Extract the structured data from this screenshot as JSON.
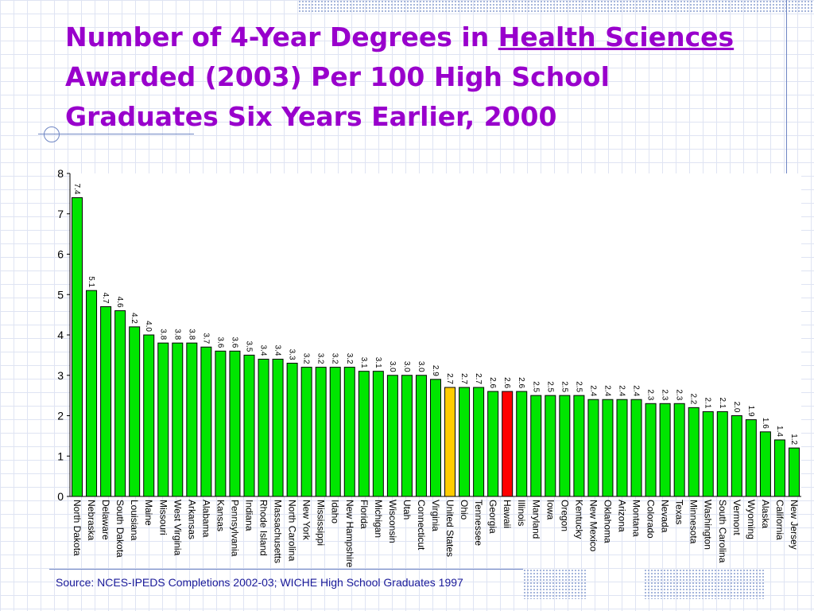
{
  "title": {
    "line1_prefix": "Number of 4-Year Degrees in ",
    "line1_underlined": "Health Sciences",
    "line2": "Awarded (2003) Per 100 High School",
    "line3": "Graduates Six Years Earlier, 2000"
  },
  "source": "Source:  NCES-IPEDS Completions 2002-03; WICHE High School Graduates 1997",
  "colors": {
    "bar_default": "#00e600",
    "bar_united_states": "#ffcc00",
    "bar_hawaii": "#ff0000",
    "title": "#9900cc"
  },
  "chart_data": {
    "type": "bar",
    "ylim": [
      0,
      8
    ],
    "yticks": [
      "0",
      "1",
      "2",
      "3",
      "4",
      "5",
      "6",
      "7",
      "8"
    ],
    "grid": false,
    "categories": [
      "North Dakota",
      "Nebraska",
      "Delaware",
      "South Dakota",
      "Louisiana",
      "Maine",
      "Missouri",
      "West Virginia",
      "Arkansas",
      "Alabama",
      "Kansas",
      "Pennsylvania",
      "Indiana",
      "Rhode Island",
      "Massachusetts",
      "North Carolina",
      "New York",
      "Mississippi",
      "Idaho",
      "New Hampshire",
      "Florida",
      "Michigan",
      "Wisconsin",
      "Utah",
      "Connecticut",
      "Virginia",
      "United States",
      "Ohio",
      "Tennessee",
      "Georgia",
      "Hawaii",
      "Illinois",
      "Maryland",
      "Iowa",
      "Oregon",
      "Kentucky",
      "New Mexico",
      "Oklahoma",
      "Arizona",
      "Montana",
      "Colorado",
      "Nevada",
      "Texas",
      "Minnesota",
      "Washington",
      "South Carolina",
      "Vermont",
      "Wyoming",
      "Alaska",
      "California",
      "New Jersey"
    ],
    "values": [
      7.4,
      5.1,
      4.7,
      4.6,
      4.2,
      4.0,
      3.8,
      3.8,
      3.8,
      3.7,
      3.6,
      3.6,
      3.5,
      3.4,
      3.4,
      3.3,
      3.2,
      3.2,
      3.2,
      3.2,
      3.1,
      3.1,
      3.0,
      3.0,
      3.0,
      2.9,
      2.7,
      2.7,
      2.7,
      2.6,
      2.6,
      2.6,
      2.5,
      2.5,
      2.5,
      2.5,
      2.4,
      2.4,
      2.4,
      2.4,
      2.3,
      2.3,
      2.3,
      2.2,
      2.1,
      2.1,
      2.0,
      1.9,
      1.6,
      1.4,
      1.2
    ],
    "data_labels": [
      "7.4",
      "5.1",
      "4.7",
      "4.6",
      "4.2",
      "4.0",
      "3.8",
      "3.8",
      "3.8",
      "3.7",
      "3.6",
      "3.6",
      "3.5",
      "3.4",
      "3.4",
      "3.3",
      "3.2",
      "3.2",
      "3.2",
      "3.2",
      "3.1",
      "3.1",
      "3.0",
      "3.0",
      "3.0",
      "2.9",
      "2.7",
      "2.7",
      "2.7",
      "2.6",
      "2.6",
      "2.6",
      "2.5",
      "2.5",
      "2.5",
      "2.5",
      "2.4",
      "2.4",
      "2.4",
      "2.4",
      "2.3",
      "2.3",
      "2.3",
      "2.2",
      "2.1",
      "2.1",
      "2.0",
      "1.9",
      "1.6",
      "1.4",
      "1.2"
    ],
    "highlight": {
      "United States": "bar_united_states",
      "Hawaii": "bar_hawaii"
    }
  }
}
